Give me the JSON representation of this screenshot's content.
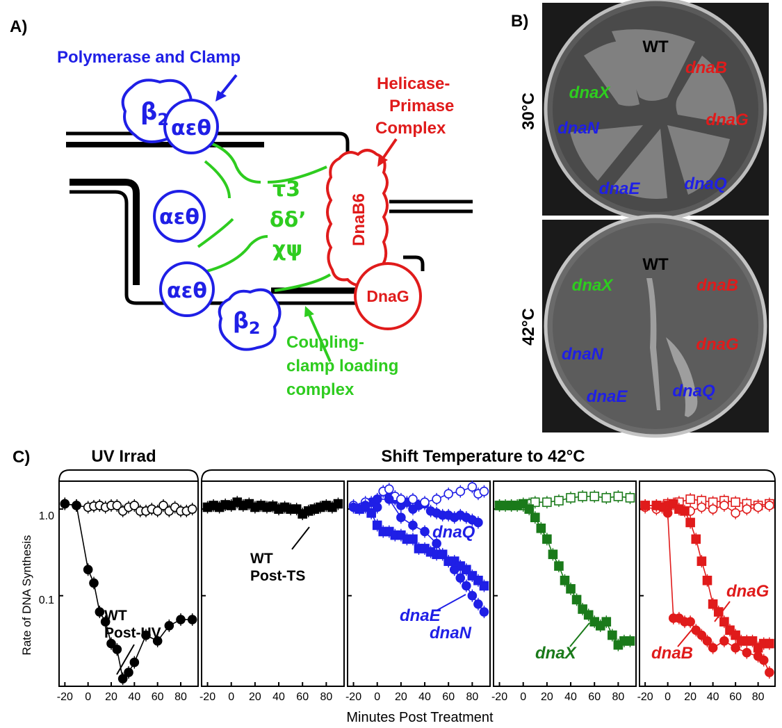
{
  "panel_a": {
    "label": "A)",
    "polymerase_label": "Polymerase and Clamp",
    "helicase_label": [
      "Helicase-",
      "Primase",
      "Complex"
    ],
    "beta_top": "β",
    "beta_bottom": "β",
    "beta_sub": "2",
    "aet_1": "αεθ",
    "aet_2": "αεθ",
    "aet_3": "αεθ",
    "tau": "τ3",
    "delta": "δδ’",
    "chi": "χψ",
    "dnab6": "DnaB6",
    "dnag": "DnaG",
    "coupling_label": [
      "Coupling-",
      "clamp loading",
      "complex"
    ],
    "colors": {
      "blue": "#1f1fe6",
      "red": "#e01b1b",
      "green": "#2ecc1f"
    }
  },
  "panel_b": {
    "label": "B)",
    "temp_30": "30°C",
    "temp_42": "42°C",
    "plate_30": {
      "wt": "WT",
      "dnaX": "dnaX",
      "dnaB": "dnaB",
      "dnaN": "dnaN",
      "dnaG": "dnaG",
      "dnaE": "dnaE",
      "dnaQ": "dnaQ"
    },
    "plate_42": {
      "wt": "WT",
      "dnaX": "dnaX",
      "dnaB": "dnaB",
      "dnaN": "dnaN",
      "dnaG": "dnaG",
      "dnaE": "dnaE",
      "dnaQ": "dnaQ"
    }
  },
  "panel_c": {
    "label": "C)",
    "bracket_uv": "UV Irrad",
    "bracket_shift": "Shift Temperature to 42°C",
    "ylabel": "Rate of DNA Synthesis",
    "xlabel": "Minutes Post Treatment"
  },
  "chart_data": [
    {
      "type": "line",
      "yscale": "log",
      "ylim": [
        0.009,
        2.1
      ],
      "xlim": [
        -25,
        95
      ],
      "yticks": [
        "1.0",
        "0.1"
      ],
      "xticks": [
        "-20",
        "0",
        "20",
        "40",
        "60",
        "80"
      ],
      "annotations": [
        "WT",
        "Post-UV"
      ],
      "series": [
        {
          "marker": "open-circle",
          "color": "#000000",
          "x": [
            -20,
            -10,
            0,
            5,
            10,
            15,
            20,
            25,
            30,
            35,
            40,
            45,
            50,
            55,
            60,
            65,
            70,
            75,
            80,
            85,
            90
          ],
          "y": [
            1.15,
            1.1,
            1.05,
            1.08,
            1.1,
            1.05,
            1.1,
            1.1,
            0.95,
            1.05,
            1.1,
            0.95,
            0.95,
            1.0,
            0.95,
            1.1,
            0.95,
            1.05,
            0.95,
            0.95,
            1.0
          ]
        },
        {
          "name": "WT",
          "marker": "filled-circle",
          "color": "#000000",
          "x": [
            -20,
            -10,
            0,
            5,
            10,
            15,
            20,
            25,
            30,
            35,
            40,
            50,
            60,
            70,
            80,
            90
          ],
          "y": [
            1.15,
            1.1,
            0.2,
            0.14,
            0.065,
            0.05,
            0.028,
            0.024,
            0.011,
            0.013,
            0.017,
            0.035,
            0.03,
            0.045,
            0.053,
            0.053
          ]
        }
      ]
    },
    {
      "type": "line",
      "yscale": "log",
      "ylim": [
        0.009,
        2.1
      ],
      "xlim": [
        -25,
        95
      ],
      "xticks": [
        "-20",
        "0",
        "20",
        "40",
        "60",
        "80"
      ],
      "annotations": [
        "WT",
        "Post-TS"
      ],
      "series": [
        {
          "name": "WT",
          "marker": "filled-square",
          "color": "#000000",
          "x": [
            -20,
            -15,
            -10,
            -5,
            0,
            5,
            10,
            15,
            20,
            25,
            30,
            35,
            40,
            45,
            50,
            55,
            60,
            65,
            70,
            75,
            80,
            85,
            90
          ],
          "y": [
            1.05,
            1.1,
            1.05,
            1.12,
            1.1,
            1.2,
            1.1,
            1.15,
            1.05,
            1.1,
            1.05,
            1.08,
            1.0,
            1.05,
            1.0,
            1.0,
            0.88,
            0.95,
            1.0,
            1.05,
            1.1,
            1.05,
            1.15
          ]
        }
      ]
    },
    {
      "type": "line",
      "yscale": "log",
      "ylim": [
        0.009,
        2.1
      ],
      "xlim": [
        -25,
        95
      ],
      "xticks": [
        "-20",
        "0",
        "20",
        "40",
        "60",
        "80"
      ],
      "series": [
        {
          "name": "dnaQ",
          "marker": "filled-circle",
          "color": "#1f1fe6",
          "x": [
            -20,
            -10,
            -5,
            0,
            5,
            10,
            15,
            20,
            25,
            30,
            35,
            40,
            45,
            50,
            55,
            60,
            65,
            70,
            75,
            80,
            85
          ],
          "y": [
            1.05,
            1.1,
            1.2,
            1.05,
            1.6,
            1.4,
            1.3,
            1.1,
            1.2,
            1.0,
            1.1,
            1.15,
            0.95,
            0.9,
            0.85,
            0.85,
            0.8,
            0.85,
            0.8,
            0.75,
            0.7
          ]
        },
        {
          "name": "dnaQ (open)",
          "marker": "open-circle",
          "color": "#1f1fe6",
          "x": [
            -20,
            -10,
            0,
            5,
            10,
            15,
            20,
            30,
            40,
            50,
            60,
            70,
            80,
            85,
            90
          ],
          "y": [
            1.1,
            1.2,
            1.3,
            1.6,
            1.7,
            1.4,
            1.3,
            1.3,
            1.2,
            1.3,
            1.5,
            1.6,
            1.8,
            1.5,
            1.6
          ]
        },
        {
          "name": "dnaE",
          "marker": "filled-square",
          "color": "#1f1fe6",
          "x": [
            -15,
            -10,
            -5,
            0,
            5,
            10,
            15,
            20,
            25,
            30,
            35,
            40,
            45,
            50,
            55,
            60,
            65,
            70,
            75,
            80,
            85,
            90
          ],
          "y": [
            1.0,
            1.05,
            0.9,
            0.65,
            0.55,
            0.55,
            0.5,
            0.5,
            0.45,
            0.45,
            0.35,
            0.35,
            0.32,
            0.3,
            0.3,
            0.25,
            0.25,
            0.22,
            0.2,
            0.17,
            0.15,
            0.13
          ]
        },
        {
          "name": "dnaN",
          "marker": "filled-circle",
          "color": "#1f1fe6",
          "x": [
            -20,
            -10,
            0,
            10,
            20,
            30,
            40,
            50,
            55,
            60,
            65,
            70,
            75,
            80,
            85,
            90
          ],
          "y": [
            1.05,
            1.1,
            1.3,
            1.3,
            0.8,
            0.65,
            0.55,
            0.4,
            0.3,
            0.25,
            0.2,
            0.16,
            0.13,
            0.1,
            0.08,
            0.065
          ]
        }
      ]
    },
    {
      "type": "line",
      "yscale": "log",
      "ylim": [
        0.009,
        2.1
      ],
      "xlim": [
        -25,
        95
      ],
      "xticks": [
        "-20",
        "0",
        "20",
        "40",
        "60",
        "80"
      ],
      "series": [
        {
          "name": "dnaX (open)",
          "marker": "open-square",
          "color": "#1a7a1a",
          "x": [
            -20,
            -10,
            0,
            5,
            10,
            20,
            30,
            40,
            50,
            60,
            70,
            80,
            90
          ],
          "y": [
            1.1,
            1.1,
            1.1,
            1.15,
            1.2,
            1.2,
            1.25,
            1.35,
            1.4,
            1.4,
            1.35,
            1.4,
            1.35
          ]
        },
        {
          "name": "dnaX",
          "marker": "filled-square",
          "color": "#1a7a1a",
          "x": [
            -20,
            -15,
            -10,
            -5,
            0,
            5,
            10,
            15,
            20,
            25,
            30,
            35,
            40,
            45,
            50,
            55,
            60,
            65,
            70,
            75,
            80,
            85,
            90
          ],
          "y": [
            1.1,
            1.1,
            1.1,
            1.1,
            1.15,
            1.0,
            0.8,
            0.6,
            0.45,
            0.3,
            0.22,
            0.15,
            0.12,
            0.09,
            0.07,
            0.06,
            0.05,
            0.045,
            0.05,
            0.035,
            0.027,
            0.03,
            0.03
          ]
        }
      ]
    },
    {
      "type": "line",
      "yscale": "log",
      "ylim": [
        0.009,
        2.1
      ],
      "xlim": [
        -25,
        95
      ],
      "xticks": [
        "-20",
        "0",
        "20",
        "40",
        "60",
        "80"
      ],
      "series": [
        {
          "name": "open squares",
          "marker": "open-square",
          "color": "#e01b1b",
          "x": [
            -20,
            -10,
            0,
            10,
            20,
            30,
            40,
            50,
            60,
            70,
            80,
            90
          ],
          "y": [
            1.1,
            1.1,
            1.15,
            1.2,
            1.3,
            1.25,
            1.2,
            1.25,
            1.2,
            1.15,
            1.1,
            1.15
          ]
        },
        {
          "name": "open circles",
          "marker": "open-circle",
          "color": "#e01b1b",
          "x": [
            -20,
            -10,
            0,
            10,
            20,
            30,
            40,
            50,
            60,
            70,
            80,
            90
          ],
          "y": [
            1.05,
            1.0,
            1.1,
            1.0,
            0.95,
            1.05,
            1.0,
            1.1,
            0.9,
            1.0,
            1.05,
            1.1
          ]
        },
        {
          "name": "dnaG",
          "marker": "filled-square",
          "color": "#e01b1b",
          "x": [
            -20,
            -10,
            0,
            5,
            10,
            15,
            20,
            25,
            30,
            35,
            40,
            45,
            50,
            55,
            60,
            65,
            70,
            75,
            80,
            85,
            90
          ],
          "y": [
            1.1,
            1.1,
            1.1,
            1.15,
            1.0,
            0.95,
            0.7,
            0.45,
            0.25,
            0.15,
            0.08,
            0.065,
            0.05,
            0.04,
            0.035,
            0.03,
            0.03,
            0.03,
            0.025,
            0.028,
            0.028
          ]
        },
        {
          "name": "dnaB",
          "marker": "filled-circle",
          "color": "#e01b1b",
          "x": [
            -20,
            -10,
            -5,
            0,
            5,
            10,
            15,
            20,
            25,
            30,
            35,
            40,
            50,
            60,
            70,
            80,
            85,
            90
          ],
          "y": [
            1.1,
            1.1,
            1.05,
            0.9,
            0.055,
            0.055,
            0.05,
            0.05,
            0.04,
            0.035,
            0.03,
            0.025,
            0.03,
            0.025,
            0.022,
            0.02,
            0.018,
            0.013
          ]
        }
      ]
    }
  ]
}
